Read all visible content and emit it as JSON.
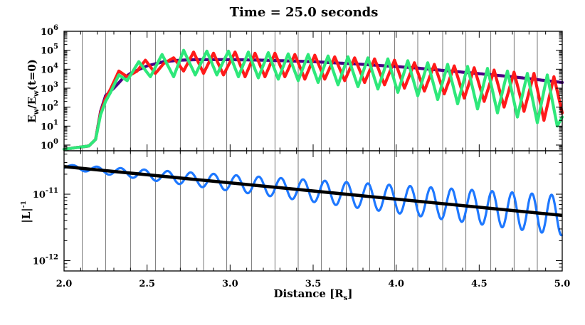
{
  "title_prefix": "Time = ",
  "title_value": "25.0",
  "title_suffix": " seconds",
  "colors": {
    "purple": "#4b0082",
    "red": "#ff1a1a",
    "green": "#2ee87a",
    "blue": "#1e78ff",
    "black": "#000000",
    "gridline": "#555555"
  },
  "chart_data": [
    {
      "type": "line",
      "panel": "top",
      "ylabel_parts": {
        "E1": "E",
        "s1": "w",
        "slash": "/E",
        "s2": "w",
        "tail": "(t=0)"
      },
      "yscale": "log",
      "ylim": [
        0.5,
        1000000
      ],
      "yticks": [
        {
          "base": "10",
          "exp": "0",
          "value": 1
        },
        {
          "base": "10",
          "exp": "1",
          "value": 10
        },
        {
          "base": "10",
          "exp": "2",
          "value": 100
        },
        {
          "base": "10",
          "exp": "3",
          "value": 1000
        },
        {
          "base": "10",
          "exp": "4",
          "value": 10000
        },
        {
          "base": "10",
          "exp": "5",
          "value": 100000
        },
        {
          "base": "10",
          "exp": "6",
          "value": 1000000
        }
      ],
      "xlim": [
        2.0,
        5.0
      ],
      "vertical_lines_x": [
        2.11,
        2.25,
        2.4,
        2.55,
        2.7,
        2.84,
        2.98,
        3.13,
        3.27,
        3.41,
        3.55,
        3.7,
        3.84,
        3.99,
        4.13,
        4.28,
        4.42,
        4.57,
        4.71,
        4.85,
        5.0
      ],
      "series": [
        {
          "color_key": "purple",
          "points": [
            [
              2.0,
              0.6
            ],
            [
              2.15,
              0.9
            ],
            [
              2.19,
              2.0
            ],
            [
              2.22,
              60
            ],
            [
              2.25,
              400
            ],
            [
              2.3,
              1000
            ],
            [
              2.35,
              3000
            ],
            [
              2.4,
              6000
            ],
            [
              2.5,
              15000
            ],
            [
              2.6,
              25000
            ],
            [
              2.7,
              30000
            ],
            [
              2.8,
              32000
            ],
            [
              3.0,
              32000
            ],
            [
              3.2,
              30000
            ],
            [
              3.5,
              25000
            ],
            [
              3.8,
              18000
            ],
            [
              4.1,
              12000
            ],
            [
              4.4,
              7000
            ],
            [
              4.7,
              4000
            ],
            [
              5.0,
              2000
            ]
          ]
        },
        {
          "color_key": "red",
          "points": [
            [
              2.0,
              0.6
            ],
            [
              2.15,
              0.9
            ],
            [
              2.19,
              2.0
            ],
            [
              2.22,
              50
            ],
            [
              2.25,
              300
            ],
            [
              2.28,
              900
            ],
            [
              2.33,
              8000
            ],
            [
              2.38,
              4000
            ],
            [
              2.44,
              8000
            ],
            [
              2.49,
              30000
            ],
            [
              2.55,
              6000
            ],
            [
              2.6,
              20000
            ],
            [
              2.66,
              40000
            ],
            [
              2.72,
              8000
            ],
            [
              2.78,
              80000
            ],
            [
              2.84,
              6000
            ],
            [
              2.9,
              70000
            ],
            [
              2.96,
              5000
            ],
            [
              3.03,
              80000
            ],
            [
              3.09,
              4000
            ],
            [
              3.15,
              70000
            ],
            [
              3.21,
              4000
            ],
            [
              3.27,
              70000
            ],
            [
              3.33,
              4000
            ],
            [
              3.39,
              60000
            ],
            [
              3.45,
              3000
            ],
            [
              3.51,
              55000
            ],
            [
              3.57,
              3000
            ],
            [
              3.63,
              45000
            ],
            [
              3.69,
              2500
            ],
            [
              3.75,
              40000
            ],
            [
              3.81,
              2000
            ],
            [
              3.87,
              35000
            ],
            [
              3.93,
              1500
            ],
            [
              3.99,
              30000
            ],
            [
              4.05,
              1000
            ],
            [
              4.11,
              22000
            ],
            [
              4.17,
              700
            ],
            [
              4.23,
              18000
            ],
            [
              4.29,
              500
            ],
            [
              4.35,
              15000
            ],
            [
              4.41,
              300
            ],
            [
              4.47,
              12000
            ],
            [
              4.53,
              200
            ],
            [
              4.59,
              9000
            ],
            [
              4.65,
              100
            ],
            [
              4.71,
              7000
            ],
            [
              4.77,
              60
            ],
            [
              4.83,
              6000
            ],
            [
              4.89,
              20
            ],
            [
              4.95,
              4000
            ],
            [
              5.0,
              50
            ]
          ]
        },
        {
          "color_key": "green",
          "points": [
            [
              2.0,
              0.6
            ],
            [
              2.15,
              0.9
            ],
            [
              2.19,
              2.0
            ],
            [
              2.22,
              40
            ],
            [
              2.25,
              200
            ],
            [
              2.28,
              600
            ],
            [
              2.33,
              5000
            ],
            [
              2.38,
              2500
            ],
            [
              2.45,
              25000
            ],
            [
              2.52,
              4000
            ],
            [
              2.59,
              60000
            ],
            [
              2.66,
              4000
            ],
            [
              2.72,
              100000
            ],
            [
              2.79,
              5000
            ],
            [
              2.86,
              90000
            ],
            [
              2.92,
              5000
            ],
            [
              2.99,
              90000
            ],
            [
              3.05,
              4000
            ],
            [
              3.11,
              80000
            ],
            [
              3.17,
              3500
            ],
            [
              3.23,
              75000
            ],
            [
              3.29,
              3000
            ],
            [
              3.35,
              65000
            ],
            [
              3.41,
              2500
            ],
            [
              3.47,
              60000
            ],
            [
              3.53,
              2000
            ],
            [
              3.59,
              50000
            ],
            [
              3.65,
              1500
            ],
            [
              3.71,
              45000
            ],
            [
              3.77,
              1200
            ],
            [
              3.83,
              40000
            ],
            [
              3.89,
              900
            ],
            [
              3.95,
              35000
            ],
            [
              4.01,
              600
            ],
            [
              4.07,
              28000
            ],
            [
              4.13,
              400
            ],
            [
              4.19,
              22000
            ],
            [
              4.25,
              250
            ],
            [
              4.31,
              18000
            ],
            [
              4.37,
              150
            ],
            [
              4.43,
              14000
            ],
            [
              4.49,
              80
            ],
            [
              4.55,
              11000
            ],
            [
              4.61,
              50
            ],
            [
              4.67,
              8000
            ],
            [
              4.73,
              30
            ],
            [
              4.79,
              6000
            ],
            [
              4.85,
              15
            ],
            [
              4.91,
              5000
            ],
            [
              4.97,
              10
            ],
            [
              5.0,
              30
            ]
          ]
        }
      ]
    },
    {
      "type": "line",
      "panel": "bottom",
      "ylabel_parts": {
        "text": "|L|",
        "exp": "-1"
      },
      "yscale": "log",
      "ylim": [
        7e-13,
        4.5e-11
      ],
      "yticks": [
        {
          "base": "10",
          "exp": "-11",
          "value": 1e-11
        },
        {
          "base": "10",
          "exp": "-12",
          "value": 1e-12
        }
      ],
      "xlim": [
        2.0,
        5.0
      ],
      "xticks": [
        {
          "label": "2.0",
          "value": 2.0
        },
        {
          "label": "2.5",
          "value": 2.5
        },
        {
          "label": "3.0",
          "value": 3.0
        },
        {
          "label": "3.5",
          "value": 3.5
        },
        {
          "label": "4.0",
          "value": 4.0
        },
        {
          "label": "4.5",
          "value": 4.5
        },
        {
          "label": "5.0",
          "value": 5.0
        }
      ],
      "xlabel_parts": {
        "text": "Distance [R",
        "sub": "s",
        "close": "]"
      },
      "series": [
        {
          "color_key": "black",
          "baseline": {
            "x0": 2.0,
            "y0": 2.6e-11,
            "x1": 5.0,
            "y1": 4.8e-12
          }
        },
        {
          "color_key": "blue",
          "wave": {
            "x0": 2.0,
            "x1": 5.0,
            "period_start": 0.146,
            "period_end": 0.117,
            "amp_start": 0.03,
            "amp_end": 0.3
          }
        }
      ]
    }
  ]
}
